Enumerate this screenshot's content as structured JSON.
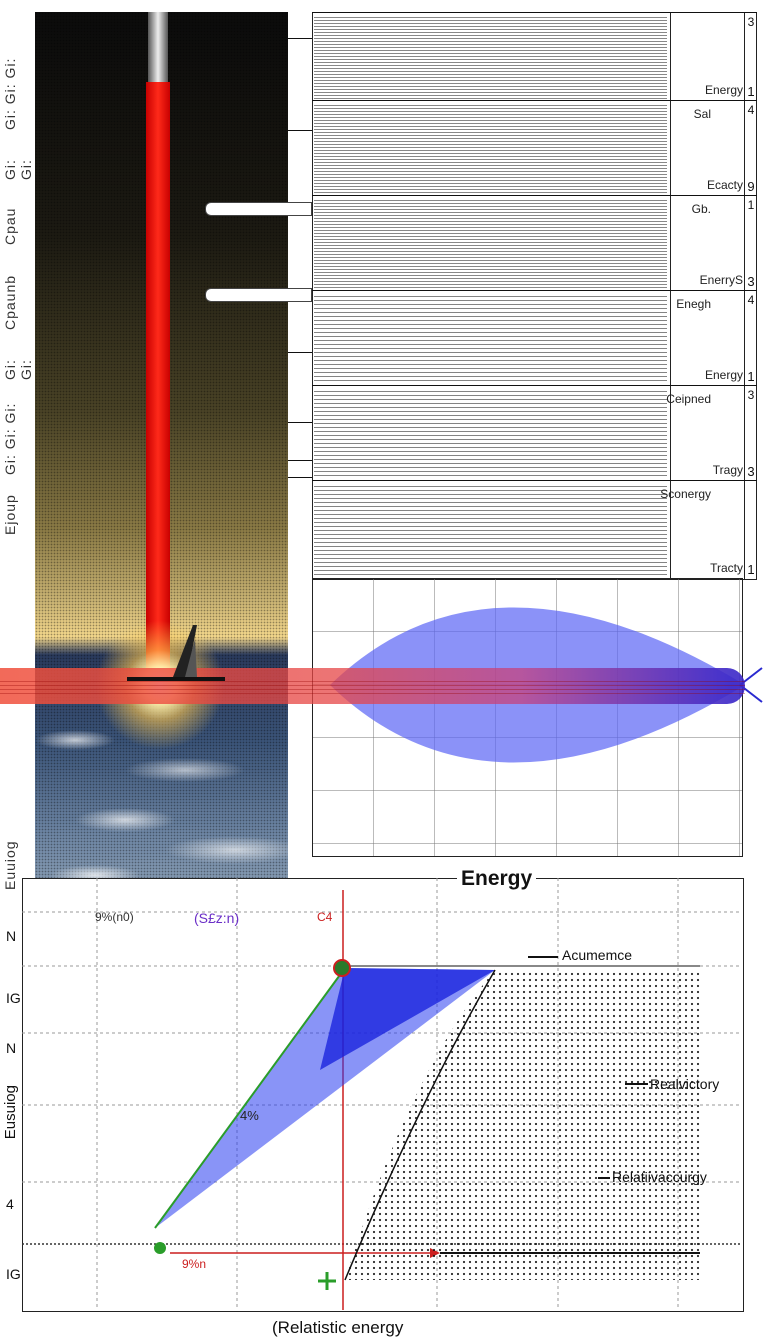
{
  "left_panel": {
    "vertical_labels": [
      "Gi: Gi: Gi:",
      "Gi: Gi:",
      "Cpau",
      "Cpaunb",
      "Gi: Gi:",
      "Gi: Gi: Gi:",
      "Ejoup",
      "Euuiog"
    ]
  },
  "table": {
    "rows": [
      {
        "label_top": "",
        "num_top": "3",
        "label_bottom": "Energy",
        "num_bottom": "1"
      },
      {
        "label_top": "Sal",
        "num_top": "4",
        "label_bottom": "Ecacty",
        "num_bottom": "9"
      },
      {
        "label_top": "Gb.",
        "num_top": "1",
        "label_bottom": "EnerryS",
        "num_bottom": "3"
      },
      {
        "label_top": "Enegh",
        "num_top": "4",
        "label_bottom": "Energy",
        "num_bottom": "1"
      },
      {
        "label_top": "Ceipned",
        "num_top": "3",
        "label_bottom": "Tragy",
        "num_bottom": "3"
      },
      {
        "label_top": "Sconergy",
        "num_top": "",
        "label_bottom": "Tracty",
        "num_bottom": "1"
      }
    ]
  },
  "bottom_chart": {
    "title": "Energy",
    "xlabel": "(Relatistic energy",
    "ylabel": "Eusuiog",
    "y_tick_labels": [
      "N",
      "IG",
      "N",
      "4",
      "IG"
    ],
    "top_left_label": "9%(n0)",
    "top_mid_label": "(S£z:n)",
    "red_marker_label": "C4",
    "percent_label": "4%",
    "bottom_percent_label": "9%n",
    "legend": [
      "Acumemce",
      "Realvictory",
      "Relatiivaccurgy"
    ],
    "colors": {
      "blue": "#1f2fe8",
      "red": "#cc1f1f",
      "green": "#2a9d2a",
      "purple": "#6b2fc7"
    }
  }
}
